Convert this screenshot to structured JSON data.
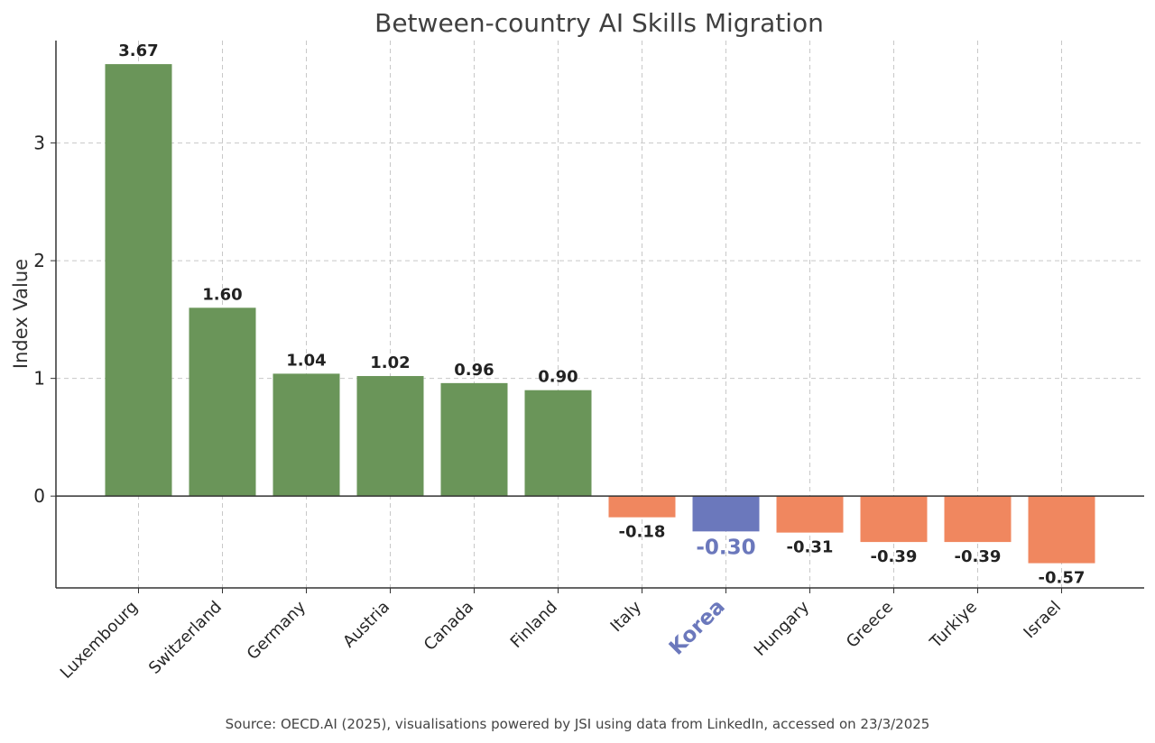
{
  "chart_data": {
    "type": "bar",
    "title": "Between-country AI Skills Migration",
    "ylabel": "Index Value",
    "xlabel": "",
    "ylim": [
      -0.78,
      3.87
    ],
    "yticks": [
      0,
      1,
      2,
      3
    ],
    "grid": true,
    "categories": [
      "Luxembourg",
      "Switzerland",
      "Germany",
      "Austria",
      "Canada",
      "Finland",
      "Italy",
      "Korea",
      "Hungary",
      "Greece",
      "Turkiye",
      "Israel"
    ],
    "values": [
      3.67,
      1.6,
      1.04,
      1.02,
      0.96,
      0.9,
      -0.18,
      -0.3,
      -0.31,
      -0.39,
      -0.39,
      -0.57
    ],
    "value_labels": [
      "3.67",
      "1.60",
      "1.04",
      "1.02",
      "0.96",
      "0.90",
      "-0.18",
      "-0.30",
      "-0.31",
      "-0.39",
      "-0.39",
      "-0.57"
    ],
    "highlight": "Korea",
    "colors": {
      "positive": "#6a9559",
      "negative": "#f0875f",
      "highlight": "#6b78bc",
      "axis": "#333333"
    },
    "source": "Source: OECD.AI (2025), visualisations powered by JSI using data from LinkedIn, accessed on 23/3/2025"
  }
}
